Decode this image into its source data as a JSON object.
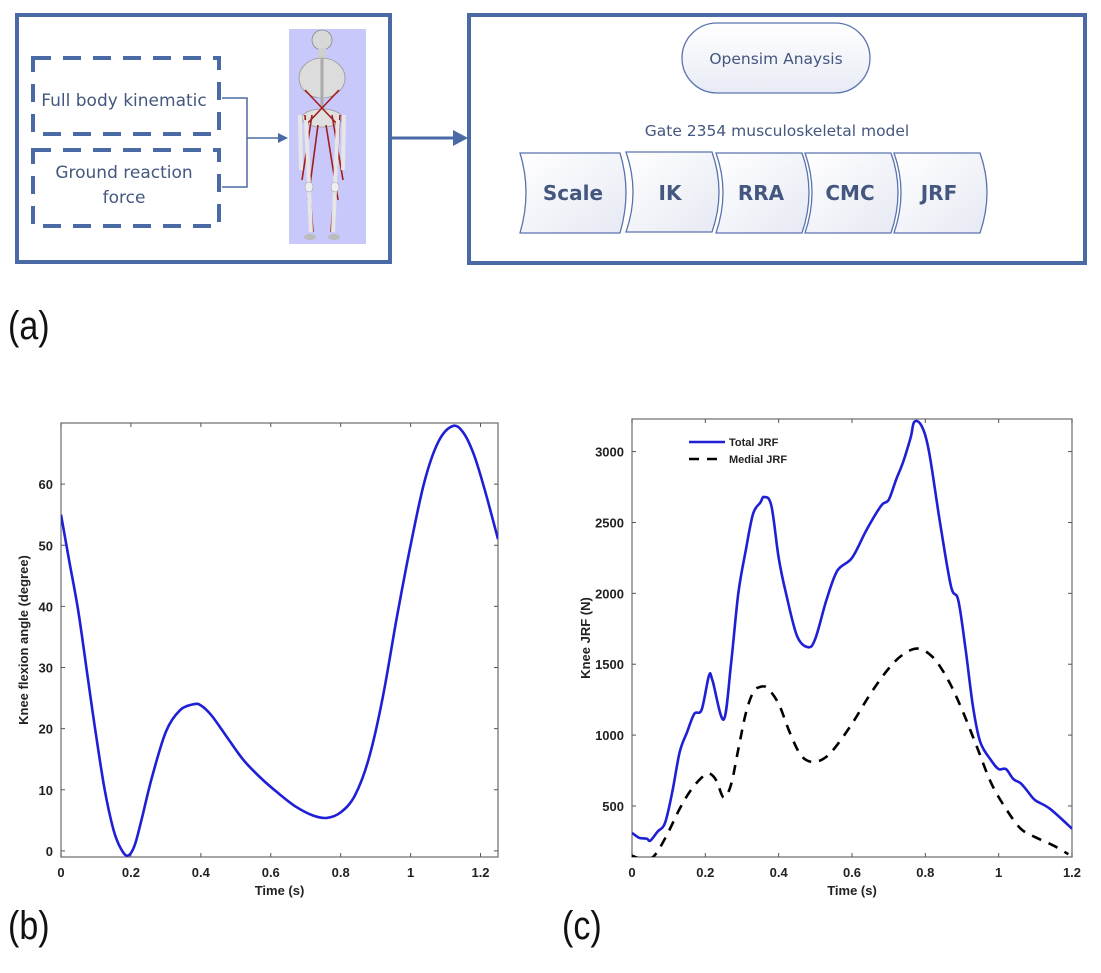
{
  "figure": {
    "panel_labels": {
      "a": "(a)",
      "b": "(b)",
      "c": "(c)"
    },
    "colors": {
      "frame": "#4a6aa6",
      "diagram_text": "#44577f",
      "skeleton_bg": "#c9c8fb",
      "series_blue": "#1f1fd6",
      "series_black": "#000000"
    }
  },
  "diagram": {
    "inputs": [
      "Full body kinematic",
      "Ground reaction force"
    ],
    "input_lines": [
      [
        "Full body kinematic"
      ],
      [
        "Ground reaction",
        "force"
      ]
    ],
    "model_image": "skeleton-musculoskeletal-model",
    "analysis_title": "Opensim Anaysis",
    "model_label": "Gate 2354 musculoskeletal model",
    "steps": [
      "Scale",
      "IK",
      "RRA",
      "CMC",
      "JRF"
    ]
  },
  "chart_data": [
    {
      "type": "line",
      "panel": "(b)",
      "title": "",
      "xlabel": "Time (s)",
      "ylabel": "Knee flexion angle (degree)",
      "xlim": [
        0,
        1.25
      ],
      "ylim": [
        -1,
        70
      ],
      "xticks": [
        0,
        0.2,
        0.4,
        0.6,
        0.8,
        1,
        1.2
      ],
      "xtick_labels": [
        "0",
        "0.2",
        "0.4",
        "0.6",
        "0.8",
        "1",
        "1.2"
      ],
      "yticks": [
        0,
        10,
        20,
        30,
        40,
        50,
        60
      ],
      "ytick_labels": [
        "0",
        "10",
        "20",
        "30",
        "40",
        "50",
        "60"
      ],
      "grid": false,
      "series": [
        {
          "name": "Knee flexion angle",
          "color": "#1f1fd6",
          "style": "solid",
          "x": [
            0,
            0.025,
            0.05,
            0.075,
            0.1,
            0.125,
            0.15,
            0.17,
            0.19,
            0.21,
            0.23,
            0.26,
            0.3,
            0.34,
            0.38,
            0.4,
            0.43,
            0.47,
            0.52,
            0.57,
            0.62,
            0.67,
            0.72,
            0.76,
            0.8,
            0.84,
            0.88,
            0.92,
            0.96,
            1.0,
            1.04,
            1.08,
            1.12,
            1.15,
            1.18,
            1.21,
            1.25
          ],
          "y": [
            55,
            47,
            39,
            29,
            19,
            10,
            3.5,
            0.5,
            -0.8,
            0.8,
            5,
            12,
            19.5,
            23,
            24,
            23.8,
            22.2,
            19,
            15,
            12,
            9.5,
            7.3,
            5.8,
            5.4,
            6.3,
            9,
            15,
            25,
            38,
            50,
            60.5,
            67,
            69.5,
            68.5,
            65,
            59.5,
            51
          ]
        }
      ]
    },
    {
      "type": "line",
      "panel": "(c)",
      "title": "",
      "xlabel": "Time (s)",
      "ylabel": "Knee JRF (N)",
      "xlim": [
        0,
        1.2
      ],
      "ylim": [
        140,
        3230
      ],
      "xticks": [
        0,
        0.2,
        0.4,
        0.6,
        0.8,
        1,
        1.2
      ],
      "xtick_labels": [
        "0",
        "0.2",
        "0.4",
        "0.6",
        "0.8",
        "1",
        "1.2"
      ],
      "yticks": [
        500,
        1000,
        1500,
        2000,
        2500,
        3000
      ],
      "ytick_labels": [
        "500",
        "1000",
        "1500",
        "2000",
        "2500",
        "3000"
      ],
      "grid": false,
      "legend": {
        "placement": "top-left",
        "entries": [
          "Total JRF",
          "Medial JRF"
        ]
      },
      "series": [
        {
          "name": "Total JRF",
          "color": "#1f1fd6",
          "style": "solid",
          "x": [
            0,
            0.02,
            0.04,
            0.05,
            0.07,
            0.09,
            0.11,
            0.13,
            0.15,
            0.17,
            0.19,
            0.21,
            0.22,
            0.25,
            0.27,
            0.29,
            0.31,
            0.33,
            0.35,
            0.36,
            0.38,
            0.4,
            0.42,
            0.45,
            0.48,
            0.5,
            0.53,
            0.56,
            0.6,
            0.64,
            0.68,
            0.7,
            0.72,
            0.74,
            0.76,
            0.77,
            0.79,
            0.81,
            0.84,
            0.87,
            0.89,
            0.91,
            0.93,
            0.95,
            0.98,
            1.0,
            1.02,
            1.04,
            1.06,
            1.08,
            1.1,
            1.14,
            1.2
          ],
          "y": [
            310,
            275,
            270,
            255,
            320,
            380,
            600,
            880,
            1020,
            1150,
            1180,
            1420,
            1380,
            1110,
            1500,
            2000,
            2300,
            2560,
            2640,
            2680,
            2620,
            2250,
            2000,
            1700,
            1620,
            1680,
            1950,
            2160,
            2250,
            2450,
            2620,
            2660,
            2800,
            2930,
            3100,
            3210,
            3180,
            3000,
            2500,
            2050,
            1950,
            1600,
            1200,
            950,
            820,
            760,
            760,
            690,
            660,
            600,
            540,
            480,
            340
          ]
        },
        {
          "name": "Medial JRF",
          "color": "#000000",
          "style": "dashed",
          "x": [
            0,
            0.03,
            0.05,
            0.07,
            0.1,
            0.13,
            0.16,
            0.19,
            0.21,
            0.23,
            0.25,
            0.27,
            0.29,
            0.31,
            0.33,
            0.35,
            0.37,
            0.4,
            0.43,
            0.46,
            0.49,
            0.52,
            0.55,
            0.6,
            0.65,
            0.7,
            0.74,
            0.78,
            0.82,
            0.86,
            0.9,
            0.94,
            0.98,
            1.02,
            1.06,
            1.1,
            1.15,
            1.19
          ],
          "y": [
            150,
            120,
            125,
            180,
            320,
            480,
            610,
            700,
            730,
            680,
            560,
            650,
            900,
            1150,
            1300,
            1340,
            1330,
            1220,
            1020,
            860,
            810,
            830,
            900,
            1080,
            1290,
            1470,
            1570,
            1610,
            1550,
            1400,
            1180,
            920,
            660,
            480,
            340,
            280,
            220,
            160
          ]
        }
      ]
    }
  ]
}
